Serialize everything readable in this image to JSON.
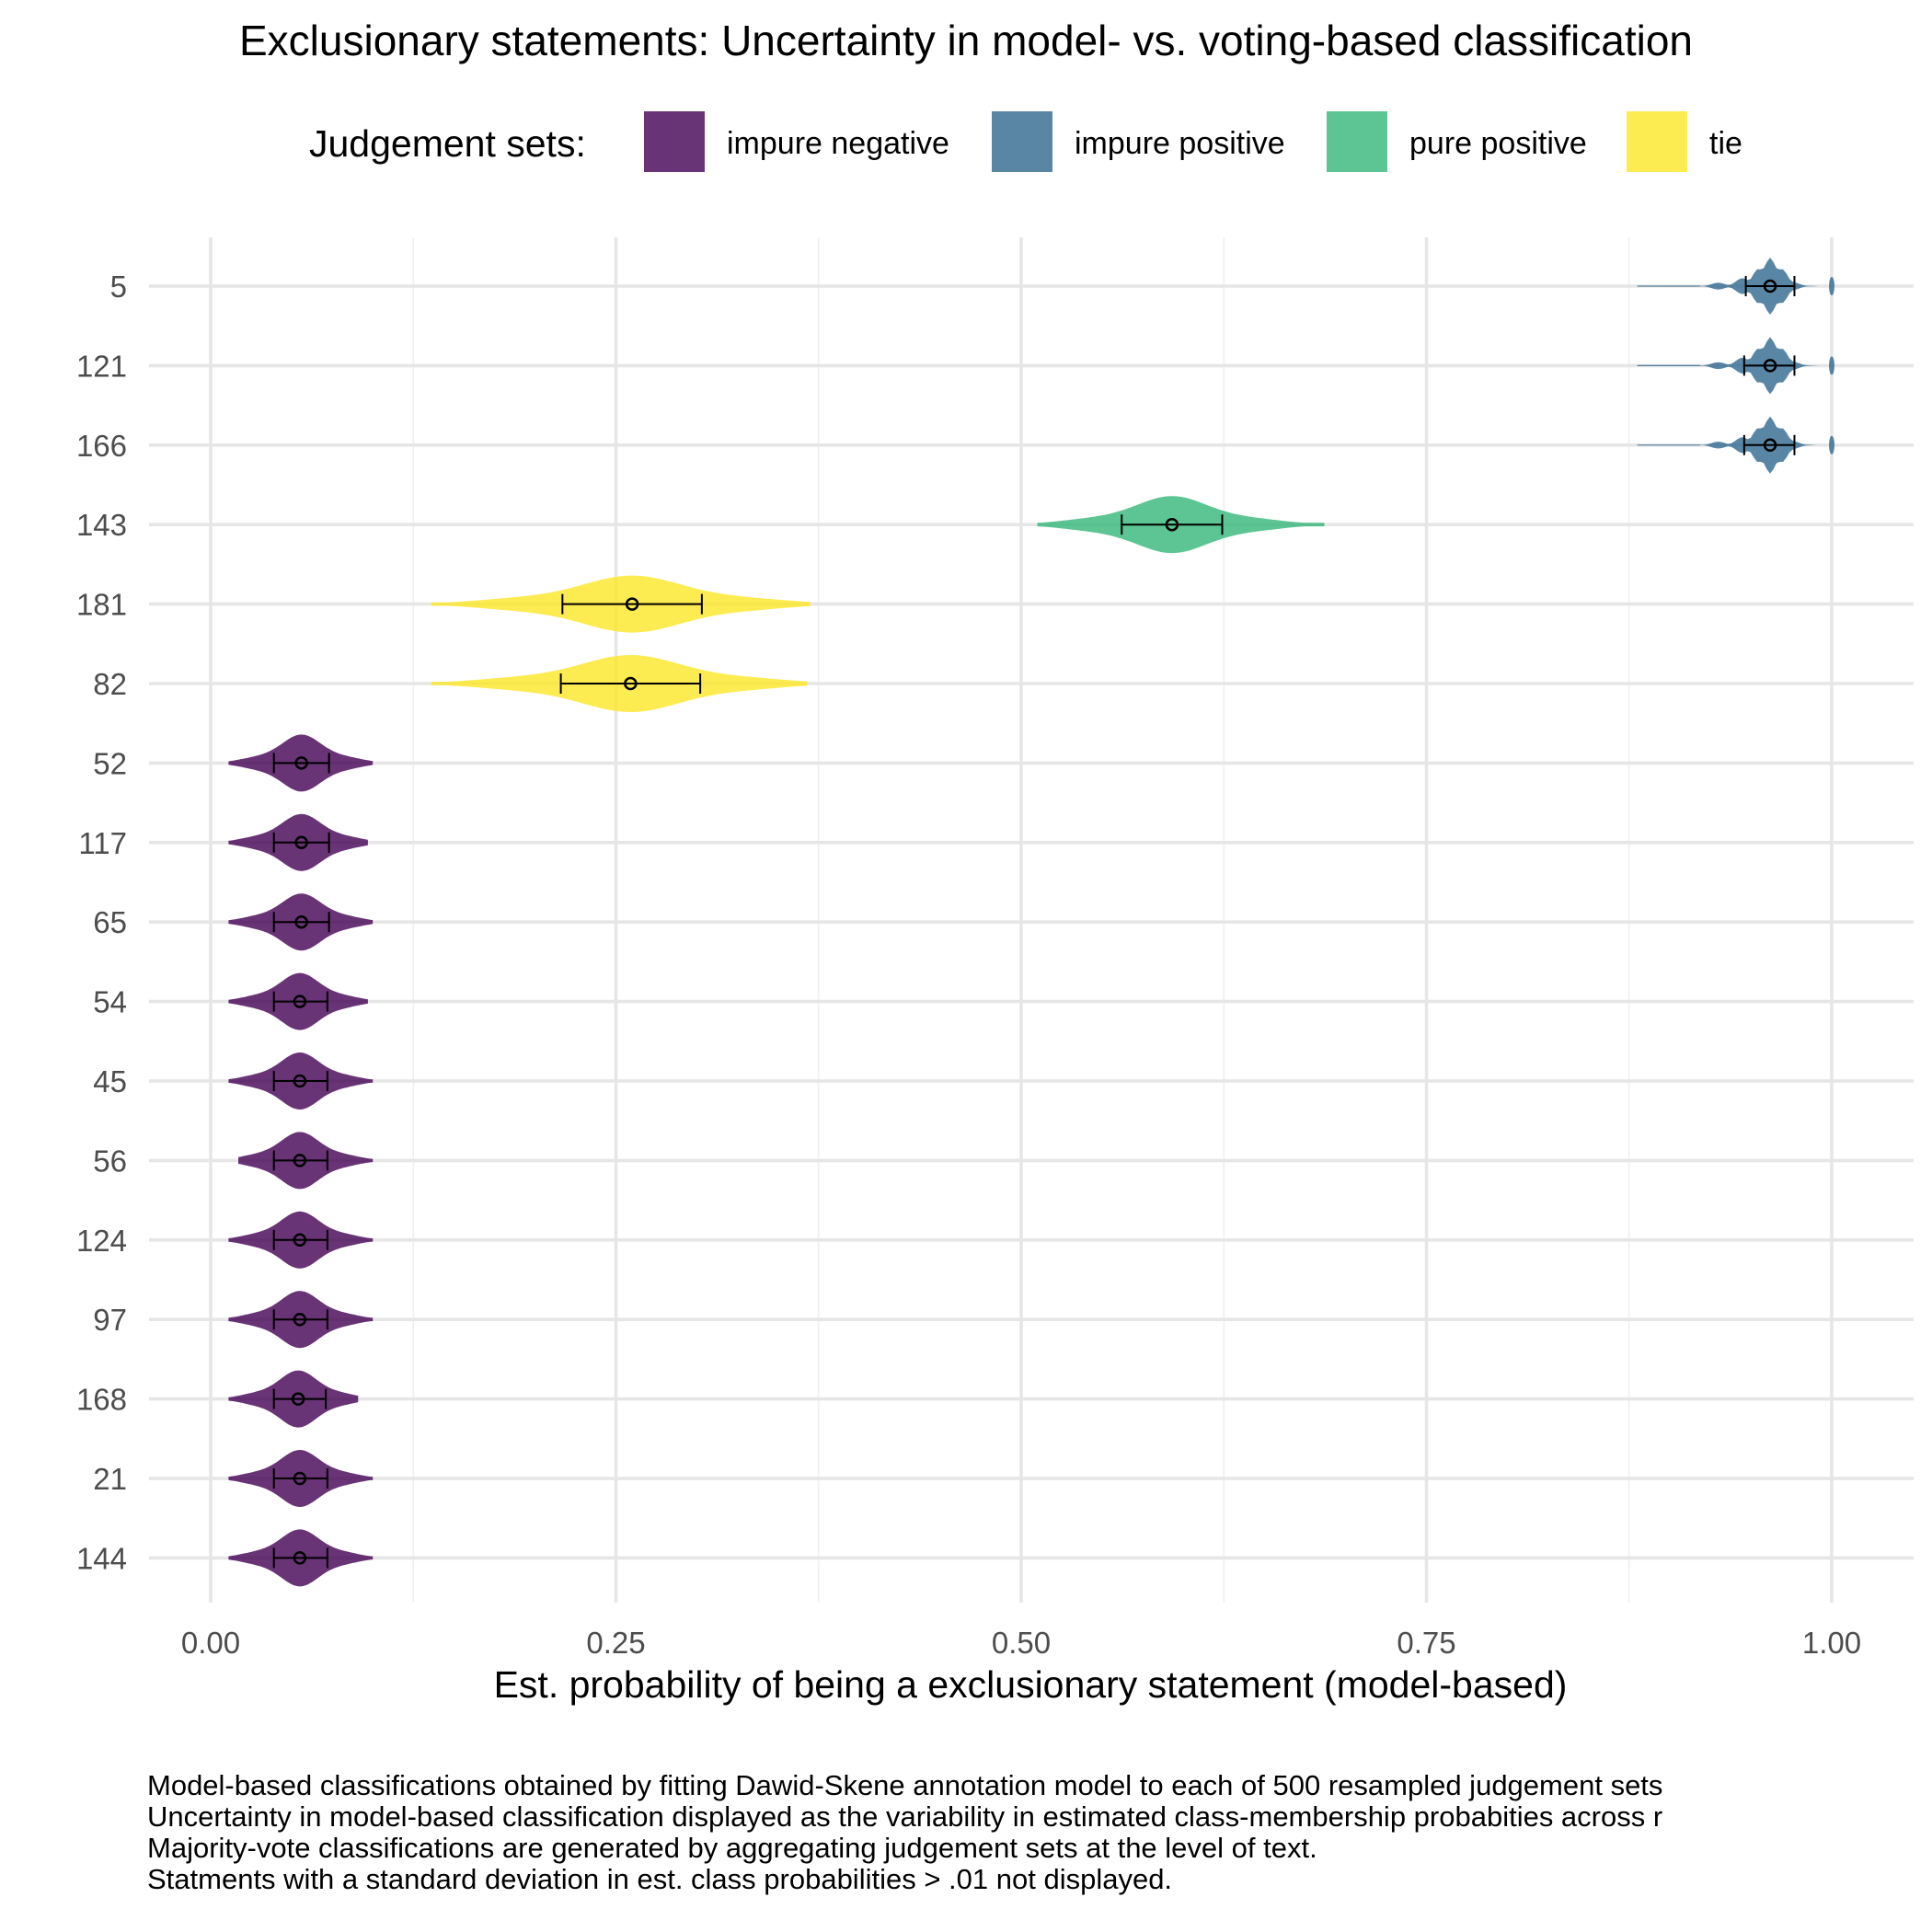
{
  "chart_data": {
    "type": "violin",
    "title": "Exclusionary statements: Uncertainty in model- vs. voting-based classification",
    "legend": {
      "title": "Judgement sets:",
      "position": "top",
      "items": [
        {
          "name": "impure negative",
          "color": "#440154"
        },
        {
          "name": "impure positive",
          "color": "#31688e"
        },
        {
          "name": "pure positive",
          "color": "#35b779"
        },
        {
          "name": "tie",
          "color": "#fde725"
        }
      ]
    },
    "fill_opacity": 0.8,
    "xlabel": "Est. probability of being a exclusionary statement (model-based)",
    "ylabel": "",
    "xlim": [
      -0.02,
      1.02
    ],
    "xticks": [
      0.0,
      0.25,
      0.5,
      0.75,
      1.0
    ],
    "xtick_labels": [
      "0.00",
      "0.25",
      "0.50",
      "0.75",
      "1.00"
    ],
    "categories": [
      "5",
      "121",
      "166",
      "143",
      "181",
      "82",
      "52",
      "117",
      "65",
      "54",
      "45",
      "56",
      "124",
      "97",
      "168",
      "21",
      "144"
    ],
    "series": [
      {
        "id": "5",
        "group": "impure positive",
        "mean": 0.962,
        "sd_low": 0.947,
        "sd_high": 0.977,
        "min": 0.88,
        "max": 1.0
      },
      {
        "id": "121",
        "group": "impure positive",
        "mean": 0.962,
        "sd_low": 0.946,
        "sd_high": 0.977,
        "min": 0.88,
        "max": 1.0
      },
      {
        "id": "166",
        "group": "impure positive",
        "mean": 0.962,
        "sd_low": 0.946,
        "sd_high": 0.977,
        "min": 0.88,
        "max": 1.0
      },
      {
        "id": "143",
        "group": "pure positive",
        "mean": 0.593,
        "sd_low": 0.562,
        "sd_high": 0.624,
        "min": 0.51,
        "max": 0.687
      },
      {
        "id": "181",
        "group": "tie",
        "mean": 0.26,
        "sd_low": 0.217,
        "sd_high": 0.303,
        "min": 0.136,
        "max": 0.37
      },
      {
        "id": "82",
        "group": "tie",
        "mean": 0.259,
        "sd_low": 0.216,
        "sd_high": 0.302,
        "min": 0.136,
        "max": 0.368
      },
      {
        "id": "52",
        "group": "impure negative",
        "mean": 0.056,
        "sd_low": 0.039,
        "sd_high": 0.073,
        "min": 0.011,
        "max": 0.1
      },
      {
        "id": "117",
        "group": "impure negative",
        "mean": 0.056,
        "sd_low": 0.039,
        "sd_high": 0.073,
        "min": 0.011,
        "max": 0.097
      },
      {
        "id": "65",
        "group": "impure negative",
        "mean": 0.056,
        "sd_low": 0.039,
        "sd_high": 0.073,
        "min": 0.011,
        "max": 0.1
      },
      {
        "id": "54",
        "group": "impure negative",
        "mean": 0.055,
        "sd_low": 0.039,
        "sd_high": 0.072,
        "min": 0.011,
        "max": 0.097
      },
      {
        "id": "45",
        "group": "impure negative",
        "mean": 0.055,
        "sd_low": 0.039,
        "sd_high": 0.072,
        "min": 0.011,
        "max": 0.1
      },
      {
        "id": "56",
        "group": "impure negative",
        "mean": 0.055,
        "sd_low": 0.039,
        "sd_high": 0.072,
        "min": 0.017,
        "max": 0.1
      },
      {
        "id": "124",
        "group": "impure negative",
        "mean": 0.055,
        "sd_low": 0.039,
        "sd_high": 0.072,
        "min": 0.011,
        "max": 0.1
      },
      {
        "id": "97",
        "group": "impure negative",
        "mean": 0.055,
        "sd_low": 0.039,
        "sd_high": 0.072,
        "min": 0.011,
        "max": 0.1
      },
      {
        "id": "168",
        "group": "impure negative",
        "mean": 0.054,
        "sd_low": 0.039,
        "sd_high": 0.071,
        "min": 0.011,
        "max": 0.091
      },
      {
        "id": "21",
        "group": "impure negative",
        "mean": 0.055,
        "sd_low": 0.039,
        "sd_high": 0.072,
        "min": 0.011,
        "max": 0.1
      },
      {
        "id": "144",
        "group": "impure negative",
        "mean": 0.055,
        "sd_low": 0.039,
        "sd_high": 0.072,
        "min": 0.011,
        "max": 0.1
      }
    ],
    "grid": true,
    "caption": [
      "Model-based classifications obtained by fitting Dawid-Skene annotation model to each of 500 resampled judgement sets",
      "Uncertainty in model-based classification displayed as the variability in estimated class-membership probabities across r",
      "Majority-vote classifications are generated by aggregating judgement sets at the level of text.",
      "Statments with a standard deviation in est. class probabilities > .01 not displayed."
    ]
  }
}
